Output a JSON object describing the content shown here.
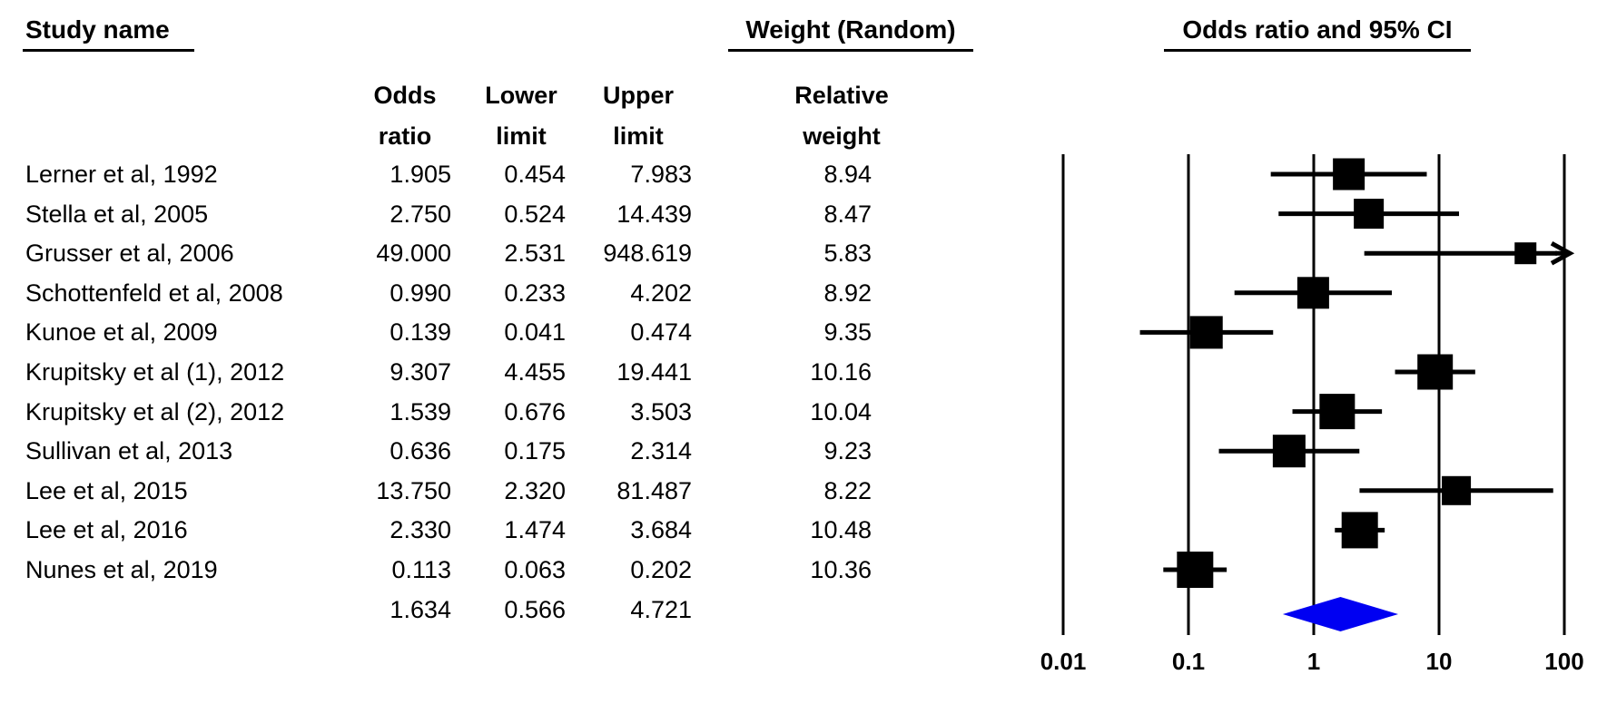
{
  "headers": {
    "study_name": "Study name",
    "weight_random": "Weight (Random)",
    "or_ci": "Odds ratio and 95% CI"
  },
  "columns": {
    "or": [
      "Odds",
      "ratio"
    ],
    "lower": [
      "Lower",
      "limit"
    ],
    "upper": [
      "Upper",
      "limit"
    ],
    "weight": [
      "Relative",
      "weight"
    ]
  },
  "chart_data": {
    "type": "forest",
    "x_scale": "log10",
    "x_ticks": [
      0.01,
      0.1,
      1,
      10,
      100
    ],
    "x_tick_labels": [
      "0.01",
      "0.1",
      "1",
      "10",
      "100"
    ],
    "xlim": [
      0.01,
      100
    ],
    "grid": "vertical-lines-at-ticks",
    "marker_color": "#000000",
    "diamond_color": "#0000F2",
    "studies": [
      {
        "name": "Lerner et al, 1992",
        "or": "1.905",
        "lower": "0.454",
        "upper": "7.983",
        "weight": "8.94"
      },
      {
        "name": "Stella et al, 2005",
        "or": "2.750",
        "lower": "0.524",
        "upper": "14.439",
        "weight": "8.47"
      },
      {
        "name": "Grusser et al, 2006",
        "or": "49.000",
        "lower": "2.531",
        "upper": "948.619",
        "weight": "5.83"
      },
      {
        "name": "Schottenfeld et al, 2008",
        "or": "0.990",
        "lower": "0.233",
        "upper": "4.202",
        "weight": "8.92"
      },
      {
        "name": "Kunoe et al, 2009",
        "or": "0.139",
        "lower": "0.041",
        "upper": "0.474",
        "weight": "9.35"
      },
      {
        "name": "Krupitsky et al (1), 2012",
        "or": "9.307",
        "lower": "4.455",
        "upper": "19.441",
        "weight": "10.16"
      },
      {
        "name": "Krupitsky et al (2), 2012",
        "or": "1.539",
        "lower": "0.676",
        "upper": "3.503",
        "weight": "10.04"
      },
      {
        "name": "Sullivan et al, 2013",
        "or": "0.636",
        "lower": "0.175",
        "upper": "2.314",
        "weight": "9.23"
      },
      {
        "name": "Lee et al, 2015",
        "or": "13.750",
        "lower": "2.320",
        "upper": "81.487",
        "weight": "8.22"
      },
      {
        "name": "Lee et al, 2016",
        "or": "2.330",
        "lower": "1.474",
        "upper": "3.684",
        "weight": "10.48"
      },
      {
        "name": "Nunes et al, 2019",
        "or": "0.113",
        "lower": "0.063",
        "upper": "0.202",
        "weight": "10.36"
      }
    ],
    "summary": {
      "or": "1.634",
      "lower": "0.566",
      "upper": "4.721"
    }
  }
}
